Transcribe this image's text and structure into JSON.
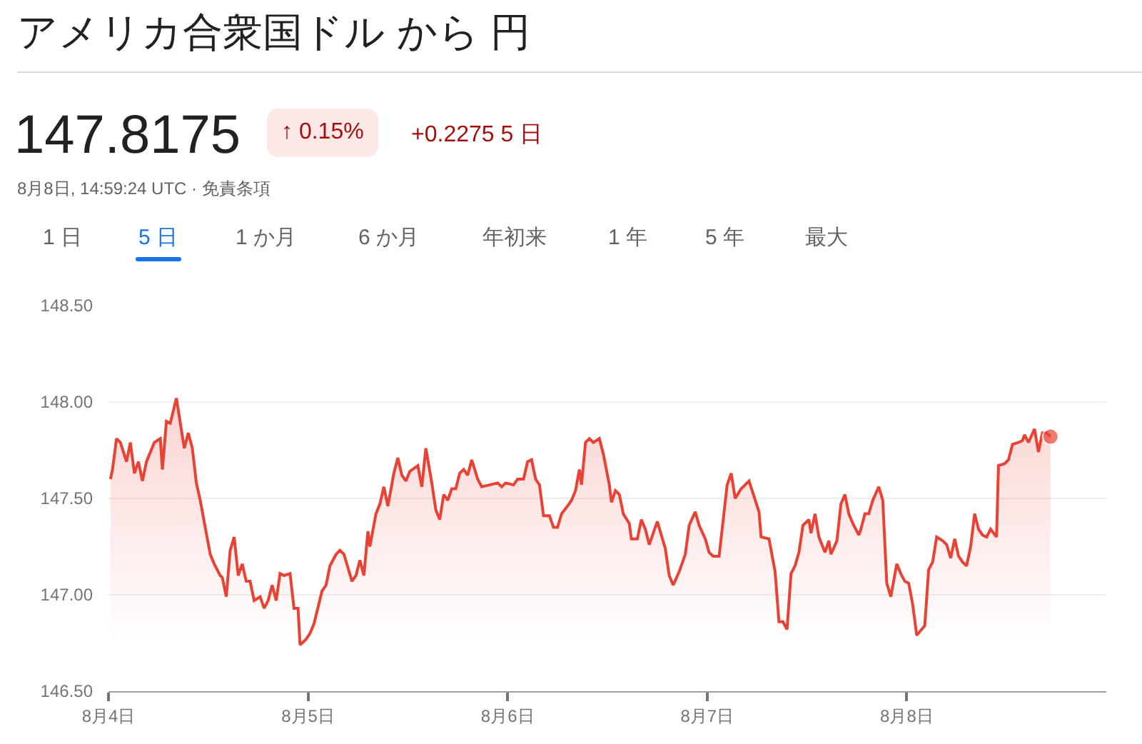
{
  "chart_data": {
    "type": "area",
    "title": "アメリカ合衆国ドル から 円",
    "annotations": [
      "147.8175",
      "↑ 0.15%",
      "+0.2275 5 日",
      "8月8日, 14:59:24 UTC · 免責条項",
      "1 日",
      "5 日",
      "1 か月",
      "6 か月",
      "年初来",
      "1 年",
      "5 年",
      "最大"
    ],
    "x": [
      "--08-04T00:14",
      "--08-04T00:29",
      "--08-04T00:58",
      "--08-04T01:26",
      "--08-04T02:10",
      "--08-04T02:38",
      "--08-04T03:07",
      "--08-04T03:36",
      "--08-04T04:05",
      "--08-04T04:34",
      "--08-04T05:31",
      "--08-04T06:14",
      "--08-04T06:29",
      "--08-04T06:58",
      "--08-04T07:26",
      "--08-04T08:10",
      "--08-04T09:07",
      "--08-04T09:36",
      "--08-04T10:05",
      "--08-04T10:34",
      "--08-04T11:02",
      "--08-04T12:14",
      "--08-04T12:43",
      "--08-04T13:26",
      "--08-04T13:41",
      "--08-04T14:10",
      "--08-04T14:38",
      "--08-04T15:07",
      "--08-04T15:36",
      "--08-04T16:05",
      "--08-04T16:34",
      "--08-04T17:02",
      "--08-04T17:31",
      "--08-04T18:14",
      "--08-04T18:43",
      "--08-04T19:12",
      "--08-04T19:41",
      "--08-04T20:10",
      "--08-04T20:38",
      "--08-04T21:07",
      "--08-04T21:50",
      "--08-04T22:19",
      "--08-04T22:48",
      "--08-04T23:02",
      "--08-04T23:46",
      "--08-05T00:14",
      "--08-05T00:43",
      "--08-05T01:41",
      "--08-05T02:10",
      "--08-05T02:38",
      "--08-05T03:22",
      "--08-05T03:50",
      "--08-05T04:19",
      "--08-05T05:17",
      "--08-05T05:46",
      "--08-05T06:14",
      "--08-05T06:43",
      "--08-05T07:12",
      "--08-05T07:26",
      "--08-05T08:10",
      "--08-05T08:38",
      "--08-05T09:07",
      "--08-05T09:36",
      "--08-05T10:19",
      "--08-05T10:48",
      "--08-05T11:17",
      "--08-05T11:46",
      "--08-05T12:14",
      "--08-05T13:12",
      "--08-05T13:41",
      "--08-05T14:10",
      "--08-05T14:53",
      "--08-05T15:22",
      "--08-05T15:50",
      "--08-05T16:19",
      "--08-05T16:48",
      "--08-05T17:17",
      "--08-05T17:46",
      "--08-05T18:14",
      "--08-05T18:43",
      "--08-05T19:12",
      "--08-05T19:41",
      "--08-05T20:24",
      "--08-05T20:53",
      "--08-05T21:50",
      "--08-05T22:48",
      "--08-05T23:17",
      "--08-05T23:46",
      "--08-06T00:43",
      "--08-06T01:12",
      "--08-06T01:55",
      "--08-06T02:24",
      "--08-06T02:53",
      "--08-06T03:22",
      "--08-06T03:50",
      "--08-06T04:19",
      "--08-06T05:02",
      "--08-06T05:31",
      "--08-06T06:00",
      "--08-06T06:29",
      "--08-06T07:12",
      "--08-06T07:41",
      "--08-06T08:10",
      "--08-06T08:38",
      "--08-06T08:53",
      "--08-06T09:22",
      "--08-06T09:50",
      "--08-06T10:19",
      "--08-06T11:02",
      "--08-06T11:31",
      "--08-06T12:14",
      "--08-06T12:29",
      "--08-06T12:58",
      "--08-06T13:26",
      "--08-06T13:55",
      "--08-06T14:38",
      "--08-06T14:53",
      "--08-06T15:36",
      "--08-06T16:05",
      "--08-06T16:34",
      "--08-06T17:02",
      "--08-06T17:31",
      "--08-06T18:00",
      "--08-06T18:29",
      "--08-06T18:58",
      "--08-06T19:26",
      "--08-06T19:55",
      "--08-06T20:38",
      "--08-06T21:22",
      "--08-06T21:50",
      "--08-06T22:34",
      "--08-06T23:02",
      "--08-06T23:46",
      "--08-07T00:14",
      "--08-07T00:43",
      "--08-07T01:26",
      "--08-07T02:24",
      "--08-07T02:53",
      "--08-07T03:22",
      "--08-07T04:05",
      "--08-07T05:02",
      "--08-07T06:14",
      "--08-07T06:29",
      "--08-07T07:26",
      "--08-07T08:10",
      "--08-07T08:38",
      "--08-07T09:07",
      "--08-07T09:36",
      "--08-07T10:05",
      "--08-07T10:34",
      "--08-07T11:02",
      "--08-07T11:31",
      "--08-07T12:14",
      "--08-07T12:29",
      "--08-07T12:58",
      "--08-07T13:26",
      "--08-07T14:10",
      "--08-07T14:38",
      "--08-07T14:53",
      "--08-07T15:36",
      "--08-07T16:05",
      "--08-07T16:34",
      "--08-07T17:02",
      "--08-07T17:31",
      "--08-07T18:14",
      "--08-07T18:29",
      "--08-07T18:58",
      "--08-07T19:26",
      "--08-07T19:55",
      "--08-07T20:38",
      "--08-07T21:07",
      "--08-07T21:36",
      "--08-07T22:05",
      "--08-07T22:48",
      "--08-07T23:17",
      "--08-07T23:46",
      "--08-08T00:14",
      "--08-08T00:43",
      "--08-08T01:12",
      "--08-08T02:10",
      "--08-08T02:38",
      "--08-08T03:07",
      "--08-08T03:36",
      "--08-08T04:19",
      "--08-08T04:48",
      "--08-08T05:17",
      "--08-08T05:46",
      "--08-08T06:14",
      "--08-08T06:43",
      "--08-08T07:12",
      "--08-08T07:41",
      "--08-08T08:10",
      "--08-08T08:38",
      "--08-08T09:07",
      "--08-08T09:36",
      "--08-08T10:05",
      "--08-08T10:48",
      "--08-08T11:02",
      "--08-08T11:46",
      "--08-08T12:14",
      "--08-08T12:43",
      "--08-08T13:26",
      "--08-08T13:55",
      "--08-08T14:10",
      "--08-08T14:38",
      "--08-08T15:22",
      "--08-08T15:50",
      "--08-08T16:19",
      "--08-08T16:48",
      "--08-08T17:17"
    ],
    "series": [
      {
        "color": "#e94235",
        "values": [
          147.6,
          147.65,
          147.81,
          147.79,
          147.69,
          147.79,
          147.63,
          147.69,
          147.59,
          147.69,
          147.79,
          147.81,
          147.65,
          147.9,
          147.89,
          148.02,
          147.76,
          147.84,
          147.76,
          147.58,
          147.49,
          147.21,
          147.16,
          147.1,
          147.09,
          146.99,
          147.23,
          147.3,
          147.1,
          147.16,
          147.07,
          147.07,
          146.97,
          146.99,
          146.93,
          146.97,
          147.05,
          146.97,
          147.11,
          147.1,
          147.11,
          146.93,
          146.93,
          146.74,
          146.77,
          146.8,
          146.85,
          147.02,
          147.05,
          147.15,
          147.21,
          147.23,
          147.21,
          147.07,
          147.1,
          147.18,
          147.1,
          147.33,
          147.25,
          147.42,
          147.47,
          147.56,
          147.46,
          147.63,
          147.71,
          147.62,
          147.59,
          147.64,
          147.67,
          147.56,
          147.76,
          147.58,
          147.44,
          147.39,
          147.52,
          147.49,
          147.55,
          147.55,
          147.63,
          147.65,
          147.62,
          147.7,
          147.6,
          147.56,
          147.57,
          147.58,
          147.56,
          147.58,
          147.57,
          147.6,
          147.6,
          147.69,
          147.7,
          147.6,
          147.57,
          147.41,
          147.41,
          147.35,
          147.35,
          147.42,
          147.46,
          147.49,
          147.54,
          147.65,
          147.57,
          147.79,
          147.81,
          147.79,
          147.81,
          147.73,
          147.57,
          147.48,
          147.54,
          147.52,
          147.42,
          147.37,
          147.29,
          147.29,
          147.39,
          147.34,
          147.26,
          147.32,
          147.38,
          147.31,
          147.24,
          147.1,
          147.05,
          147.12,
          147.21,
          147.36,
          147.43,
          147.36,
          147.29,
          147.22,
          147.2,
          147.2,
          147.57,
          147.63,
          147.5,
          147.55,
          147.59,
          147.43,
          147.3,
          147.29,
          147.12,
          146.86,
          146.86,
          146.82,
          147.11,
          147.15,
          147.22,
          147.36,
          147.39,
          147.32,
          147.42,
          147.3,
          147.22,
          147.28,
          147.21,
          147.28,
          147.47,
          147.52,
          147.42,
          147.37,
          147.31,
          147.34,
          147.42,
          147.42,
          147.49,
          147.56,
          147.49,
          147.06,
          146.99,
          147.16,
          147.11,
          147.07,
          147.06,
          146.95,
          146.79,
          146.84,
          147.13,
          147.17,
          147.3,
          147.28,
          147.26,
          147.19,
          147.29,
          147.2,
          147.17,
          147.15,
          147.25,
          147.42,
          147.34,
          147.31,
          147.3,
          147.34,
          147.3,
          147.67,
          147.68,
          147.7,
          147.78,
          147.79,
          147.8,
          147.83,
          147.79,
          147.86,
          147.74,
          147.84,
          147.84,
          147.82
        ]
      }
    ],
    "xlim": [
      "--08-04",
      "--08-09"
    ],
    "xticks": [
      {
        "value": "--08-04",
        "label": "8月4日"
      },
      {
        "value": "--08-05",
        "label": "8月5日"
      },
      {
        "value": "--08-06",
        "label": "8月6日"
      },
      {
        "value": "--08-07",
        "label": "8月7日"
      },
      {
        "value": "--08-08",
        "label": "8月8日"
      }
    ],
    "ylim": [
      146.5,
      148.5
    ],
    "yticks": [
      {
        "value": 146.5,
        "label": "146.50"
      },
      {
        "value": 147,
        "label": "147.00"
      },
      {
        "value": 147.5,
        "label": "147.50"
      },
      {
        "value": 148,
        "label": "148.00"
      },
      {
        "value": 148.5,
        "label": "148.50"
      }
    ],
    "grid": "y"
  }
}
